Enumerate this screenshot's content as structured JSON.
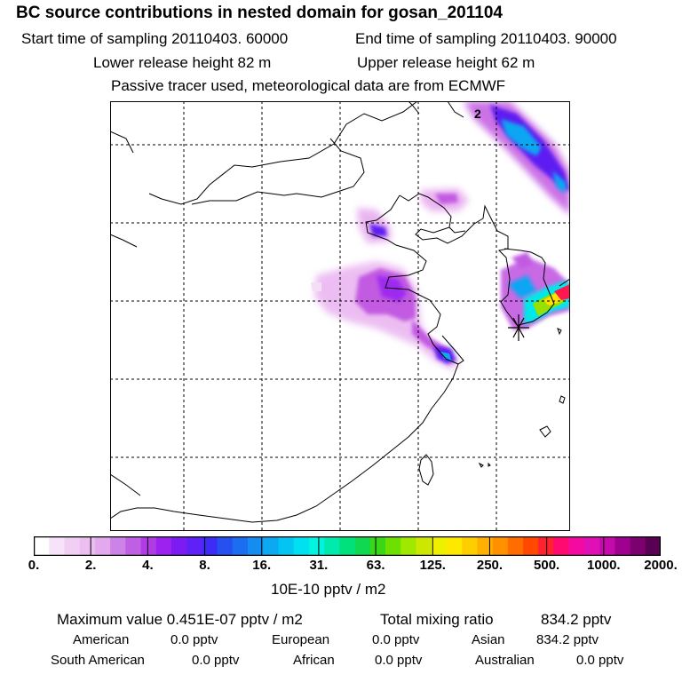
{
  "header": {
    "title": "BC  source contributions in nested domain for gosan_201104",
    "start_label": "Start time of sampling 20110403. 60000",
    "end_label": "End time of sampling 20110403. 90000",
    "lower_height_label": "Lower release height   82 m",
    "upper_height_label": "Upper release height   62 m",
    "tracer_note": "Passive tracer used, meteorological data are from ECMWF"
  },
  "map": {
    "grid_style": "dashed",
    "contour_label": "2",
    "receptor_marker": "star-cross-icon",
    "plume_colors": [
      "#f4ddf6",
      "#e6a8ee",
      "#c25ae2",
      "#9e2af0",
      "#5f1ff2",
      "#2453f0",
      "#10a6f2",
      "#00e8e8",
      "#18d878",
      "#98e000",
      "#ffe000",
      "#ff6a00",
      "#ff1850"
    ]
  },
  "colorbar": {
    "tick_labels": [
      "0.",
      "2.",
      "4.",
      "8.",
      "16.",
      "31.",
      "63.",
      "125.",
      "250.",
      "500.",
      "1000.",
      "2000."
    ],
    "unit_label": "10E-10 pptv / m2",
    "colors": [
      "#ffffff",
      "#f7e3f9",
      "#f1cff5",
      "#ecbff2",
      "#e3a9ee",
      "#cd82e8",
      "#bf60e4",
      "#b13ce6",
      "#9d22f0",
      "#7d1cf2",
      "#5e22f6",
      "#3c2cf6",
      "#2750f0",
      "#1c6ef0",
      "#148cf0",
      "#0ca8f2",
      "#04c4f2",
      "#00e0ee",
      "#00f4e0",
      "#00eaae",
      "#00e07c",
      "#10d850",
      "#38d818",
      "#6ee000",
      "#a0e800",
      "#cce800",
      "#eef000",
      "#ffe800",
      "#ffce00",
      "#ffb000",
      "#ff9000",
      "#ff6c00",
      "#ff4800",
      "#ff2030",
      "#ff0a70",
      "#f40aa0",
      "#de10b6",
      "#c40aaa",
      "#a00090",
      "#7c0070",
      "#5a0054"
    ]
  },
  "footer": {
    "max_label": "Maximum value  0.451E-07 pptv / m2",
    "total_label": "Total mixing ratio",
    "total_value": "834.2 pptv",
    "sources_row1": [
      {
        "name": "American",
        "value": "0.0 pptv"
      },
      {
        "name": "European",
        "value": "0.0 pptv"
      },
      {
        "name": "Asian",
        "value": "834.2 pptv"
      }
    ],
    "sources_row2": [
      {
        "name": "South American",
        "value": "0.0 pptv"
      },
      {
        "name": "African",
        "value": "0.0 pptv"
      },
      {
        "name": "Australian",
        "value": "0.0 pptv"
      }
    ]
  }
}
